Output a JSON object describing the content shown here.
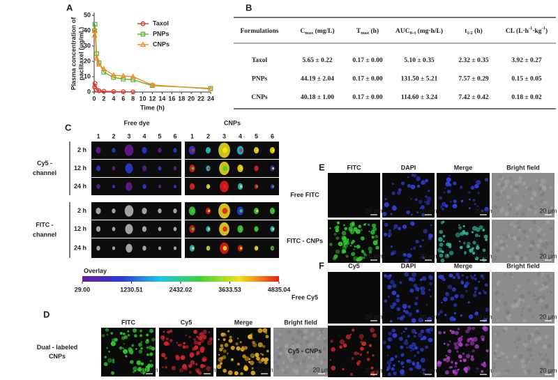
{
  "chart_data": {
    "type": "line",
    "panel": "A",
    "ylabel": [
      "Plasma concentration of",
      "paclitaxel (μg/mL)"
    ],
    "xlabel": "Time (h)",
    "x": [
      0.083,
      0.17,
      0.5,
      1,
      2,
      4,
      6,
      8,
      12,
      24
    ],
    "xlim": [
      0,
      24
    ],
    "xticks": [
      0,
      2,
      4,
      6,
      8,
      10,
      12,
      14,
      16,
      18,
      20,
      22,
      24
    ],
    "ylim": [
      0,
      50
    ],
    "yticks": [
      0,
      10,
      20,
      30,
      40,
      50
    ],
    "legend": "upper right",
    "series": [
      {
        "name": "Taxol",
        "color": "#e0392b",
        "values": [
          3.2,
          5.65,
          1.4,
          0.8,
          0.5,
          0.3,
          0.2,
          0.1,
          null,
          null
        ]
      },
      {
        "name": "PNPs",
        "color": "#5cb531",
        "values": [
          40,
          44.19,
          25,
          19,
          13,
          9.5,
          8.5,
          8,
          4.2,
          2.4
        ]
      },
      {
        "name": "CNPs",
        "color": "#f08a24",
        "values": [
          37,
          40.18,
          22,
          18,
          15,
          11,
          10.5,
          10,
          4.6,
          2
        ]
      }
    ]
  },
  "table": {
    "panel": "B",
    "header": [
      [
        {
          "text": "Formulations"
        }
      ],
      [
        {
          "text": "C"
        },
        {
          "text": "max",
          "style": "sub"
        },
        {
          "text": " (mg/L)"
        }
      ],
      [
        {
          "text": "T"
        },
        {
          "text": "max",
          "style": "sub"
        },
        {
          "text": " (h)"
        }
      ],
      [
        {
          "text": "AUC"
        },
        {
          "text": "0–t",
          "style": "sub"
        },
        {
          "text": " (mg·h/L)"
        }
      ],
      [
        {
          "text": "t"
        },
        {
          "text": "1/2",
          "style": "sub"
        },
        {
          "text": " (h)"
        }
      ],
      [
        {
          "text": "CL (L·h"
        },
        {
          "text": "-1",
          "style": "sup"
        },
        {
          "text": "·kg"
        },
        {
          "text": "-1",
          "style": "sup"
        },
        {
          "text": ")"
        }
      ]
    ],
    "rows": [
      [
        "Taxol",
        "5.65 ± 0.22",
        "0.17 ± 0.00",
        "5.10 ± 0.35",
        "2.32 ± 0.35",
        "3.92 ± 0.27"
      ],
      [
        "PNPs",
        "44.19 ± 2.04",
        "0.17 ± 0.00",
        "131.50 ± 5.21",
        "7.57 ± 0.29",
        "0.15 ± 0.05"
      ],
      [
        "CNPs",
        "40.18 ± 1.00",
        "0.17 ± 0.00",
        "114.60 ± 3.24",
        "7.42 ± 0.42",
        "0.18 ± 0.02"
      ]
    ]
  },
  "imaging": {
    "panel": "C",
    "groups": [
      "Free dye",
      "CNPs"
    ],
    "organs": [
      "1",
      "2",
      "3",
      "4",
      "5",
      "6"
    ],
    "channels": [
      {
        "label": [
          "Cy5 -",
          "channel"
        ],
        "times": [
          "2 h",
          "12 h",
          "24 h"
        ]
      },
      {
        "label": [
          "FITC -",
          "channel"
        ],
        "times": [
          "2 h",
          "12 h",
          "24 h"
        ]
      }
    ],
    "colorbar": {
      "title": "Overlay",
      "lim": [
        29,
        4835.04
      ],
      "ticks": [
        {
          "value": 29,
          "label": "29.00"
        },
        {
          "value": 1230.51,
          "label": "1230.51"
        },
        {
          "value": 2432.02,
          "label": "2432.02"
        },
        {
          "value": 3633.53,
          "label": "3633.53"
        },
        {
          "value": 4835.04,
          "label": "4835.04"
        }
      ]
    }
  },
  "micrographs": [
    {
      "panel": "D",
      "columns": [
        "FITC",
        "Cy5",
        "Merge",
        "Bright field"
      ],
      "rows": [
        [
          "Dual - labeled",
          "CNPs"
        ]
      ],
      "scale_bar": "20 μm"
    },
    {
      "panel": "E",
      "columns": [
        "FITC",
        "DAPI",
        "Merge",
        "Bright field"
      ],
      "rows": [
        [
          "Free FITC"
        ],
        [
          "FITC - CNPs"
        ]
      ],
      "scale_bar": "20 μm"
    },
    {
      "panel": "F",
      "columns": [
        "Cy5",
        "DAPI",
        "Merge",
        "Bright field"
      ],
      "rows": [
        [
          "Free Cy5"
        ],
        [
          "Cy5 - CNPs"
        ]
      ],
      "scale_bar": "20 μm"
    }
  ]
}
